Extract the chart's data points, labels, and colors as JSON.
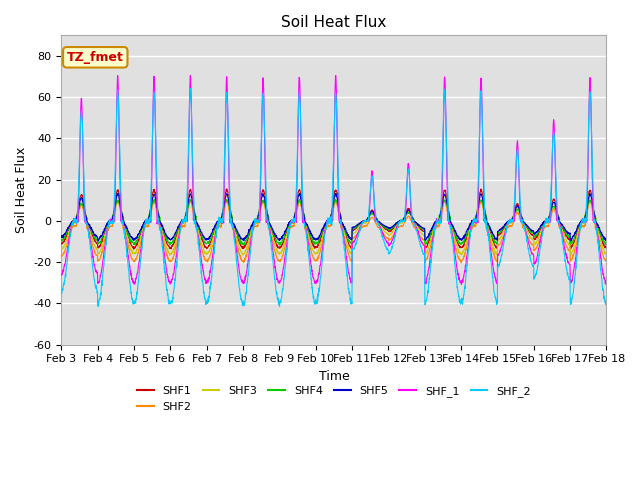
{
  "title": "Soil Heat Flux",
  "xlabel": "Time",
  "ylabel": "Soil Heat Flux",
  "ylim": [
    -60,
    90
  ],
  "yticks": [
    -60,
    -40,
    -20,
    0,
    20,
    40,
    60,
    80
  ],
  "background_color": "#ffffff",
  "plot_bg_color": "#e0e0e0",
  "legend_label": "TZ_fmet",
  "legend_bg": "#ffffcc",
  "legend_border": "#cc8800",
  "series": [
    "SHF1",
    "SHF2",
    "SHF3",
    "SHF4",
    "SHF5",
    "SHF_1",
    "SHF_2"
  ],
  "colors": [
    "#cc0000",
    "#ff8800",
    "#cccc00",
    "#00cc00",
    "#0000cc",
    "#ff00ff",
    "#00ccff"
  ],
  "grid_color": "#ffffff",
  "title_fontsize": 11,
  "axis_fontsize": 9,
  "tick_fontsize": 8
}
